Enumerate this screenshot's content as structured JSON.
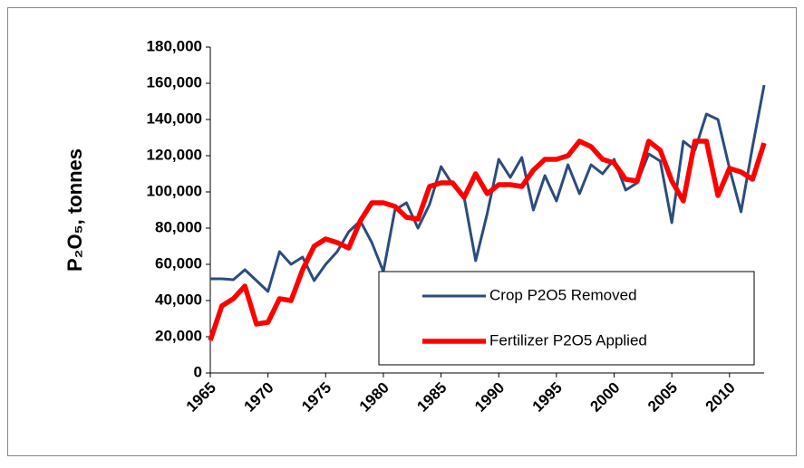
{
  "chart_data": {
    "type": "line",
    "y_label": "P₂O₅, tonnes",
    "x": [
      1965,
      1966,
      1967,
      1968,
      1969,
      1970,
      1971,
      1972,
      1973,
      1974,
      1975,
      1976,
      1977,
      1978,
      1979,
      1980,
      1981,
      1982,
      1983,
      1984,
      1985,
      1986,
      1987,
      1988,
      1989,
      1990,
      1991,
      1992,
      1993,
      1994,
      1995,
      1996,
      1997,
      1998,
      1999,
      2000,
      2001,
      2002,
      2003,
      2004,
      2005,
      2006,
      2007,
      2008,
      2009,
      2010,
      2011,
      2012,
      2013
    ],
    "series": [
      {
        "name": "Crop P2O5 Removed",
        "color": "#2b4c7e",
        "width": 3,
        "values": [
          52000,
          52000,
          51500,
          57000,
          51000,
          45000,
          67000,
          60000,
          64000,
          51000,
          60000,
          67000,
          78000,
          84000,
          72000,
          56000,
          90000,
          94000,
          80000,
          93000,
          114000,
          104000,
          97000,
          62000,
          88000,
          118000,
          108000,
          119000,
          90000,
          109000,
          95000,
          115000,
          99000,
          115000,
          110000,
          118000,
          101000,
          105000,
          121000,
          117000,
          83000,
          128000,
          123000,
          143000,
          140000,
          113000,
          89000,
          125000,
          159000
        ]
      },
      {
        "name": "Fertilizer P2O5 Applied",
        "color": "#ff0000",
        "width": 5.5,
        "values": [
          18000,
          37000,
          41000,
          48000,
          27000,
          28000,
          41000,
          40000,
          57000,
          70000,
          74000,
          72000,
          69000,
          84000,
          94000,
          94000,
          92000,
          86000,
          85000,
          103000,
          105000,
          105000,
          97000,
          110000,
          99000,
          104000,
          104000,
          103000,
          112000,
          118000,
          118000,
          120000,
          128000,
          125000,
          118000,
          116000,
          107000,
          106000,
          128000,
          123000,
          106000,
          95000,
          128000,
          128000,
          98000,
          113000,
          111000,
          107000,
          127000
        ]
      }
    ],
    "xlim": [
      1965,
      2013
    ],
    "xticks": [
      1965,
      1970,
      1975,
      1980,
      1985,
      1990,
      1995,
      2000,
      2005,
      2010
    ],
    "ylim": [
      0,
      180000
    ],
    "yticks": [
      0,
      {
        "value": 20000,
        "label": "20,000"
      },
      {
        "value": 40000,
        "label": "40,000"
      },
      {
        "value": 60000,
        "label": "60,000"
      },
      {
        "value": 80000,
        "label": "80,000"
      },
      {
        "value": 100000,
        "label": "100,000"
      },
      {
        "value": 120000,
        "label": "120,000"
      },
      {
        "value": 140000,
        "label": "140,000"
      },
      {
        "value": 160000,
        "label": "160,000"
      },
      {
        "value": 180000,
        "label": "180,000"
      }
    ],
    "legend": "lower-right"
  }
}
